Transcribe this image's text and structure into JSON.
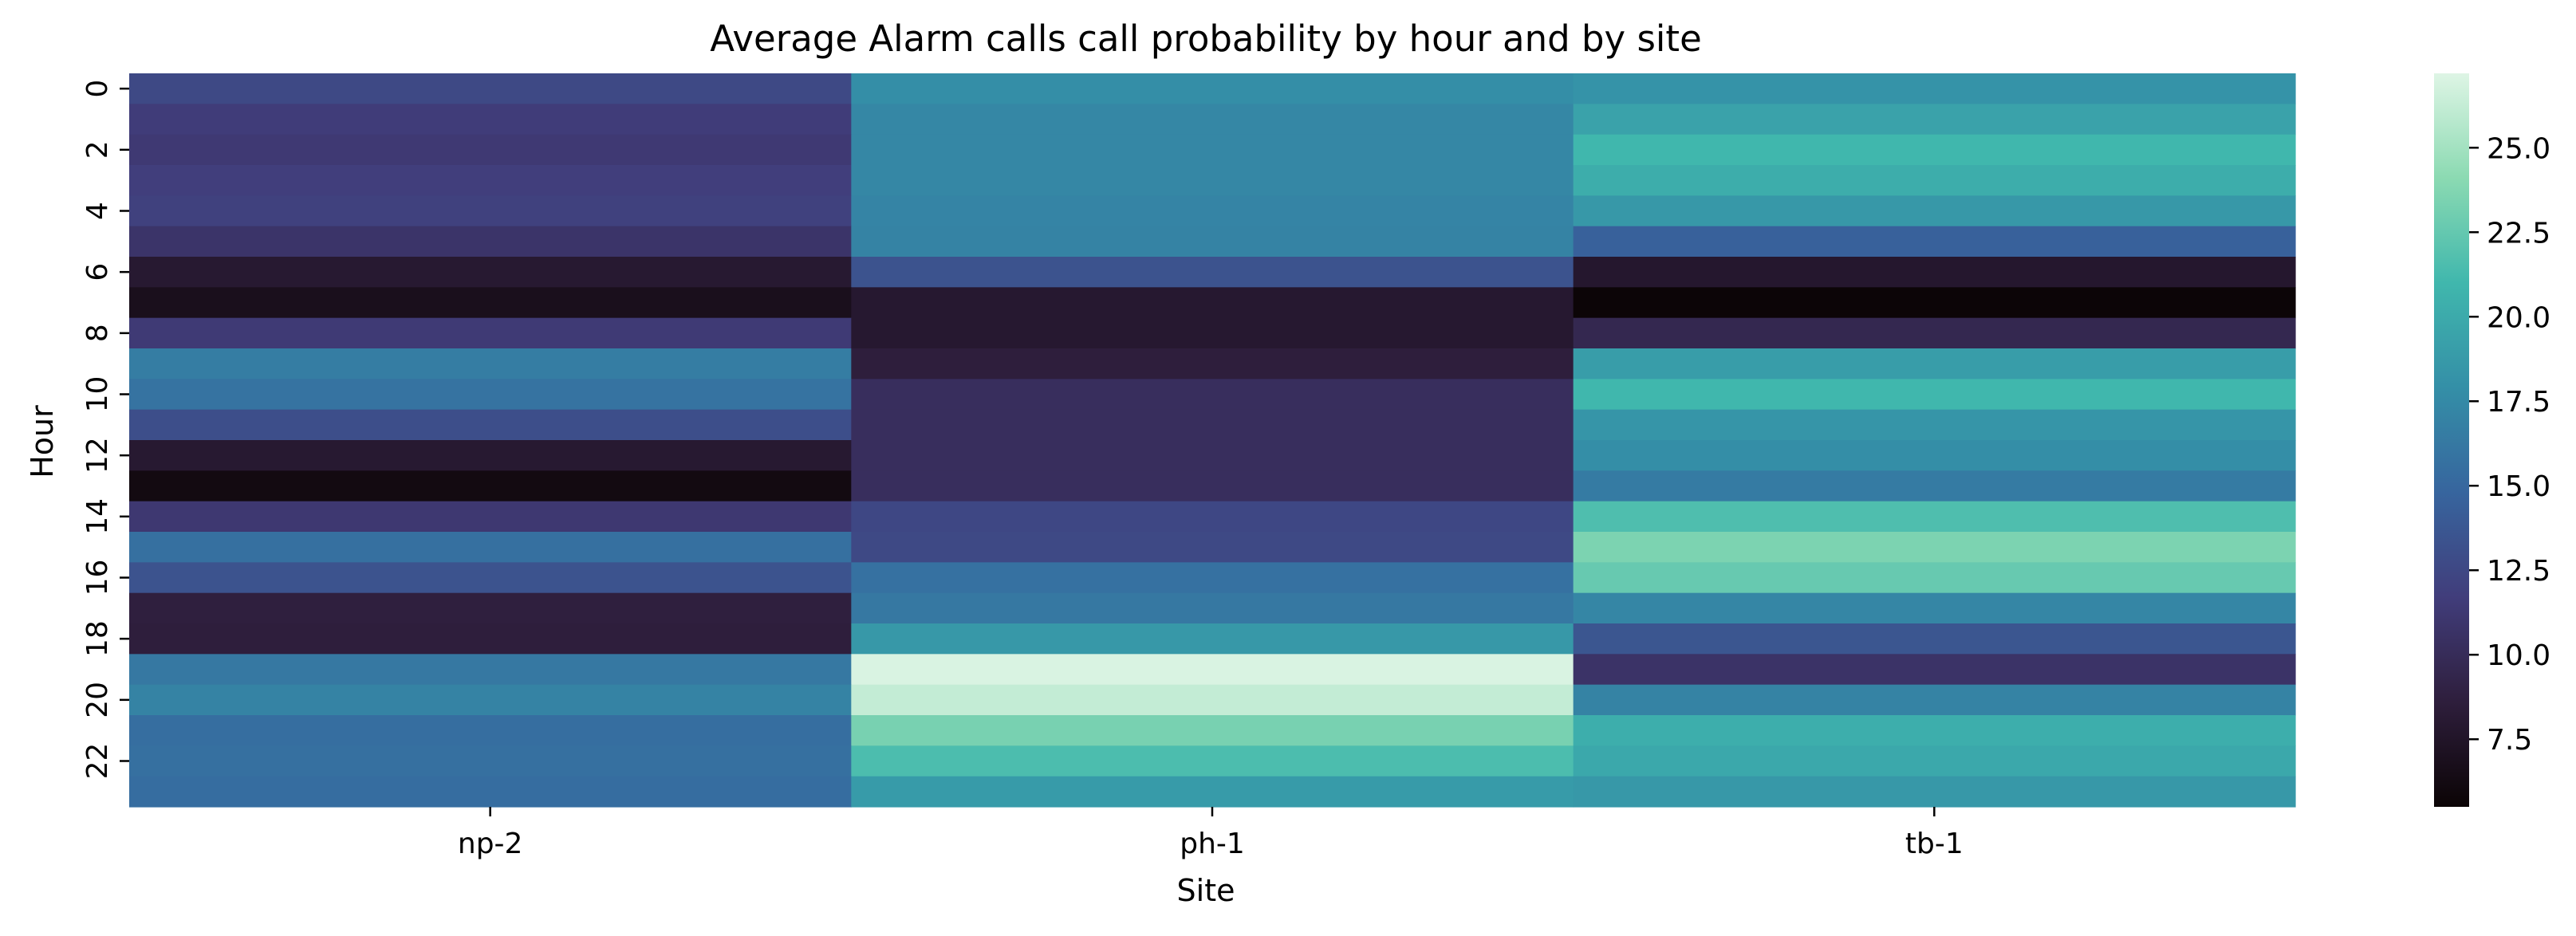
{
  "chart_data": {
    "type": "heatmap",
    "title": "Average Alarm calls call probability by hour and by site",
    "xlabel": "Site",
    "ylabel": "Hour",
    "x_categories": [
      "np-2",
      "ph-1",
      "tb-1"
    ],
    "y_categories": [
      0,
      1,
      2,
      3,
      4,
      5,
      6,
      7,
      8,
      9,
      10,
      11,
      12,
      13,
      14,
      15,
      16,
      17,
      18,
      19,
      20,
      21,
      22,
      23
    ],
    "y_tick_labels": [
      "0",
      "2",
      "4",
      "6",
      "8",
      "10",
      "12",
      "14",
      "16",
      "18",
      "20",
      "22"
    ],
    "values": [
      [
        12.6,
        17.8,
        18.2
      ],
      [
        11.6,
        17.3,
        19.4
      ],
      [
        11.3,
        17.3,
        21.0
      ],
      [
        11.8,
        17.3,
        20.2
      ],
      [
        12.0,
        17.1,
        18.6
      ],
      [
        10.8,
        17.0,
        14.5
      ],
      [
        8.0,
        13.4,
        7.8
      ],
      [
        6.8,
        7.9,
        5.6
      ],
      [
        11.4,
        7.9,
        9.6
      ],
      [
        16.6,
        8.6,
        19.0
      ],
      [
        15.8,
        10.2,
        21.0
      ],
      [
        13.0,
        10.2,
        18.4
      ],
      [
        8.0,
        10.2,
        17.8
      ],
      [
        6.2,
        10.2,
        16.4
      ],
      [
        11.2,
        12.5,
        21.6
      ],
      [
        15.6,
        12.6,
        23.5
      ],
      [
        13.4,
        15.7,
        22.6
      ],
      [
        8.7,
        16.2,
        17.2
      ],
      [
        8.6,
        18.6,
        13.6
      ],
      [
        16.2,
        27.0,
        10.7
      ],
      [
        17.0,
        26.2,
        17.0
      ],
      [
        15.5,
        23.3,
        20.3
      ],
      [
        15.6,
        21.5,
        19.8
      ],
      [
        15.4,
        18.8,
        18.6
      ]
    ],
    "colorbar": {
      "min": 5.5,
      "max": 27.2,
      "ticks": [
        7.5,
        10.0,
        12.5,
        15.0,
        17.5,
        20.0,
        22.5,
        25.0
      ],
      "tick_labels": [
        "7.5",
        "10.0",
        "12.5",
        "15.0",
        "17.5",
        "20.0",
        "22.5",
        "25.0"
      ]
    },
    "colormap": "mako",
    "colormap_stops": [
      "#0b0405",
      "#2e1e3c",
      "#413d7b",
      "#37659e",
      "#348fa7",
      "#40b7ad",
      "#8bdab2",
      "#def5e5"
    ]
  }
}
